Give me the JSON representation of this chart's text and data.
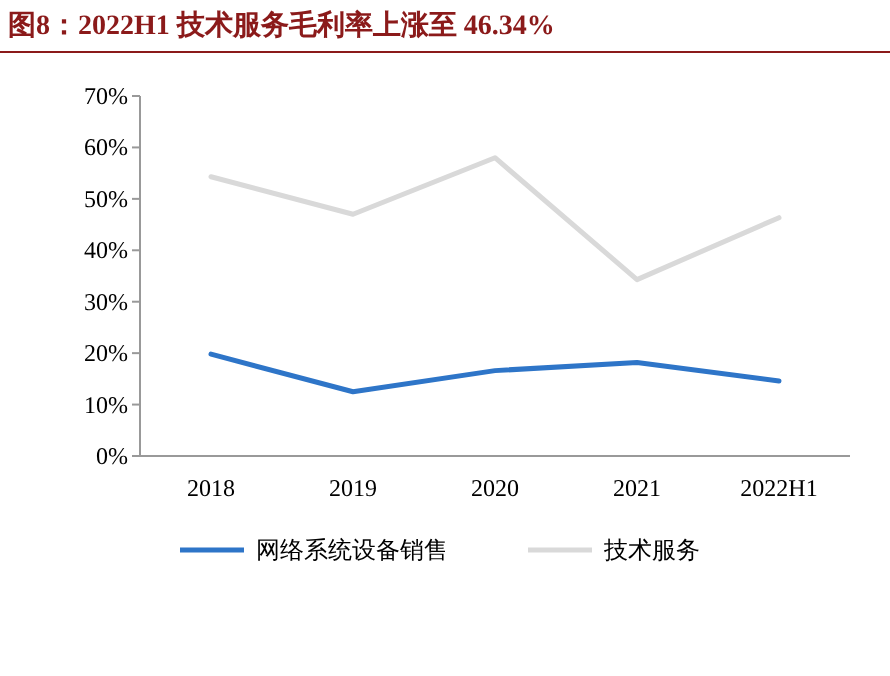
{
  "chart_data": {
    "type": "line",
    "title": "图8：2022H1 技术服务毛利率上涨至 46.34%",
    "categories": [
      "2018",
      "2019",
      "2020",
      "2021",
      "2022H1"
    ],
    "series": [
      {
        "name": "网络系统设备销售",
        "color": "#2e75c8",
        "values": [
          19.8,
          12.5,
          16.6,
          18.2,
          14.6
        ]
      },
      {
        "name": "技术服务",
        "color": "#d9d9d9",
        "values": [
          54.3,
          47.0,
          58.0,
          34.3,
          46.34
        ]
      }
    ],
    "ylim": [
      0,
      70
    ],
    "yticks": [
      {
        "value": 0,
        "label": "0%"
      },
      {
        "value": 10,
        "label": "10%"
      },
      {
        "value": 20,
        "label": "20%"
      },
      {
        "value": 30,
        "label": "30%"
      },
      {
        "value": 40,
        "label": "40%"
      },
      {
        "value": 50,
        "label": "50%"
      },
      {
        "value": 60,
        "label": "60%"
      },
      {
        "value": 70,
        "label": "70%"
      }
    ],
    "grid": false,
    "legend": "bottom",
    "marker": "none",
    "line_style": "solid"
  }
}
